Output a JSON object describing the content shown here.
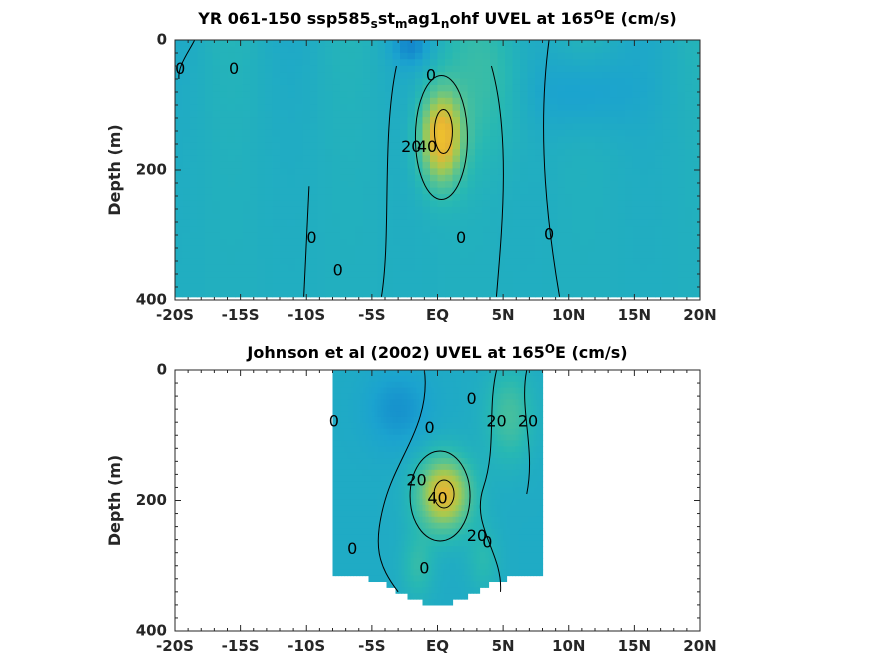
{
  "chart_data": [
    {
      "type": "heatmap",
      "title_parts": [
        "YR 061-150 ssp585",
        "s",
        "st",
        "m",
        "ag1",
        "n",
        "ohf UVEL at 165",
        "O",
        "E (cm/s)"
      ],
      "xlabel": "",
      "ylabel": "Depth (m)",
      "xlim": [
        -20,
        20
      ],
      "ylim": [
        0,
        400
      ],
      "x_ticks": [
        -20,
        -15,
        -10,
        -5,
        0,
        5,
        10,
        15,
        20
      ],
      "x_tick_labels": [
        "-20S",
        "-15S",
        "-10S",
        "-5S",
        "EQ",
        "5N",
        "10N",
        "15N",
        "20N"
      ],
      "y_ticks": [
        0,
        200,
        400
      ],
      "y_tick_labels": [
        "0",
        "200",
        "400"
      ],
      "colormap": [
        "#0d6fc9",
        "#1ba3cf",
        "#27b8b3",
        "#5cc48f",
        "#a9c94d",
        "#e6b534",
        "#f5c92a"
      ],
      "data_extent": {
        "x": [
          -20,
          20
        ],
        "depth": [
          0,
          395
        ]
      },
      "core": {
        "x": 0.3,
        "depth": 150,
        "max_speed": 45
      },
      "contour_levels": [
        0,
        20,
        40
      ],
      "contour_labels": [
        {
          "text": "0",
          "x": -19.6,
          "depth": 45
        },
        {
          "text": "0",
          "x": -15.5,
          "depth": 45
        },
        {
          "text": "0",
          "x": -0.5,
          "depth": 55
        },
        {
          "text": "20",
          "x": -2.0,
          "depth": 165
        },
        {
          "text": "40",
          "x": -0.8,
          "depth": 165
        },
        {
          "text": "0",
          "x": -9.6,
          "depth": 305
        },
        {
          "text": "0",
          "x": -7.6,
          "depth": 355
        },
        {
          "text": "0",
          "x": 1.8,
          "depth": 305
        },
        {
          "text": "0",
          "x": 8.5,
          "depth": 300
        }
      ]
    },
    {
      "type": "heatmap",
      "title_parts": [
        "Johnson et al (2002) UVEL at 165",
        "O",
        "E (cm/s)"
      ],
      "xlabel": "",
      "ylabel": "Depth (m)",
      "xlim": [
        -20,
        20
      ],
      "ylim": [
        0,
        400
      ],
      "x_ticks": [
        -20,
        -15,
        -10,
        -5,
        0,
        5,
        10,
        15,
        20
      ],
      "x_tick_labels": [
        "-20S",
        "-15S",
        "-10S",
        "-5S",
        "EQ",
        "5N",
        "10N",
        "15N",
        "20N"
      ],
      "y_ticks": [
        0,
        200,
        400
      ],
      "y_tick_labels": [
        "0",
        "200",
        "400"
      ],
      "colormap": [
        "#0d6fc9",
        "#1ba3cf",
        "#27b8b3",
        "#5cc48f",
        "#a9c94d",
        "#e6b534",
        "#f5c92a"
      ],
      "data_extent": {
        "x": [
          -8,
          8
        ],
        "depth": [
          0,
          360
        ]
      },
      "core": {
        "x": 0.5,
        "depth": 190,
        "max_speed": 42
      },
      "contour_levels": [
        0,
        20,
        40
      ],
      "contour_labels": [
        {
          "text": "0",
          "x": -7.9,
          "depth": 80
        },
        {
          "text": "0",
          "x": -0.6,
          "depth": 90
        },
        {
          "text": "0",
          "x": 2.6,
          "depth": 45
        },
        {
          "text": "20",
          "x": 4.5,
          "depth": 80
        },
        {
          "text": "20",
          "x": 6.9,
          "depth": 80
        },
        {
          "text": "20",
          "x": -1.6,
          "depth": 170
        },
        {
          "text": "40",
          "x": 0.0,
          "depth": 198
        },
        {
          "text": "20",
          "x": 3.0,
          "depth": 255
        },
        {
          "text": "0",
          "x": 3.8,
          "depth": 265
        },
        {
          "text": "0",
          "x": -6.5,
          "depth": 275
        },
        {
          "text": "0",
          "x": -1.0,
          "depth": 305
        }
      ]
    }
  ]
}
